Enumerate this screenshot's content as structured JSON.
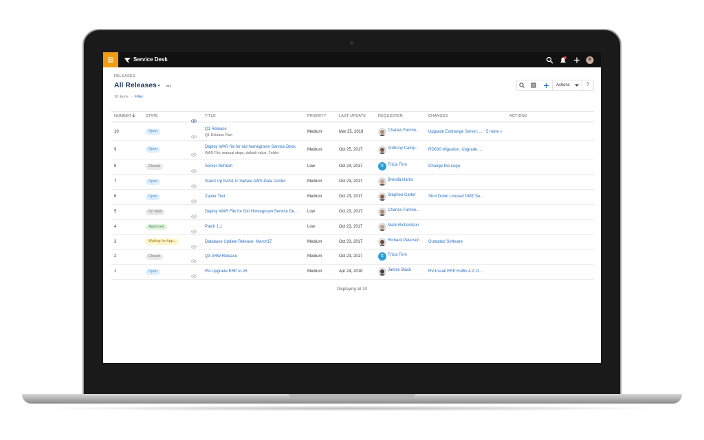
{
  "app": {
    "name": "Service Desk"
  },
  "header": {
    "section": "RELEASES",
    "title": "All Releases",
    "item_count": "10 items",
    "filter": "Filter",
    "actions_button": "Actions",
    "help": "?"
  },
  "table": {
    "columns": [
      "NUMBER",
      "STATE",
      "TITLE",
      "PRIORITY",
      "LAST UPDATE",
      "REQUESTER",
      "CHANGES",
      "ACTIONS"
    ],
    "rows": [
      {
        "number": "10",
        "state": "Open",
        "title": "Q1 Release",
        "subtitle": "Q1 Release Plan",
        "priority": "Medium",
        "last_update": "Mar 25, 2019",
        "requester": "Charles Farmin...",
        "changes": "Upgrade Exchange Server, ...",
        "more": "5 more »"
      },
      {
        "number": "9",
        "state": "Open",
        "title": "Deploy WAR file for old homegrown Service Desk",
        "subtitle": "WAR File, manual steps, default value, Folder",
        "priority": "Medium",
        "last_update": "Oct 25, 2017",
        "requester": "Anthony Camp...",
        "changes": "RD630 Migration, Upgrade ..."
      },
      {
        "number": "8",
        "state": "Closed",
        "title": "Server Refresh",
        "priority": "Low",
        "last_update": "Oct 24, 2017",
        "requester": "Tricia Finn",
        "initials": "TF",
        "changes": "Change the Logo"
      },
      {
        "number": "7",
        "state": "Open",
        "title": "Stand Up NAS1 in Vadata AWS Data Center",
        "priority": "Medium",
        "last_update": "Oct 23, 2017",
        "requester": "Brenda Harris"
      },
      {
        "number": "6",
        "state": "Open",
        "title": "Zapier Test",
        "priority": "Medium",
        "last_update": "Oct 23, 2017",
        "requester": "Stephen Carter",
        "changes": "Shut Down Unused DMZ Se..."
      },
      {
        "number": "5",
        "state": "On Hold",
        "title": "Deploy WAR File for Old Homegrown Service De...",
        "priority": "Low",
        "last_update": "Oct 23, 2017",
        "requester": "Charles Farmin..."
      },
      {
        "number": "4",
        "state": "Approved",
        "title": "Patch 1.1",
        "priority": "Low",
        "last_update": "Oct 23, 2017",
        "requester": "Mark Richardson"
      },
      {
        "number": "3",
        "state": "Waiting for App...",
        "title": "Database Update Release- March17",
        "priority": "Medium",
        "last_update": "Oct 23, 2017",
        "requester": "Richard Peterson",
        "changes": "Outdated Software"
      },
      {
        "number": "2",
        "state": "Closed",
        "title": "Q3 ARW Release",
        "priority": "Medium",
        "last_update": "Oct 23, 2017",
        "requester": "Tricia Finn",
        "initials": "TF"
      },
      {
        "number": "1",
        "state": "Open",
        "title": "RV-Upgrade ERP to v5",
        "priority": "Medium",
        "last_update": "Apr 24, 2018",
        "requester": "James Black",
        "changes": "RV-Install ERP Hotfix 4.2.11 ..."
      }
    ]
  },
  "footer": "Displaying all 10"
}
